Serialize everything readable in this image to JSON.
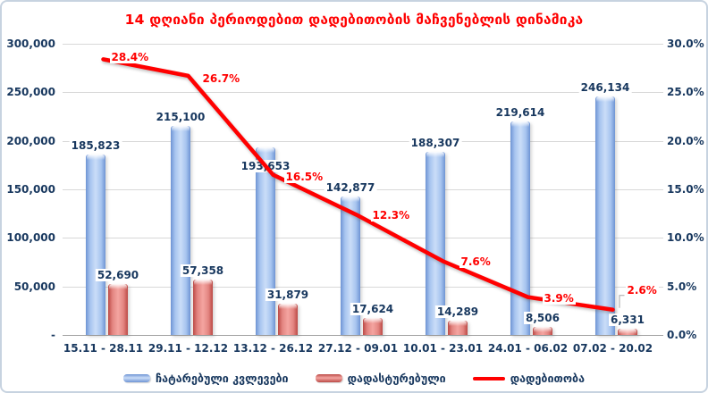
{
  "title": "14 დღიანი პერიოდებით დადებითობის მაჩვენებლის დინამიკა",
  "legend": {
    "items": [
      {
        "label": "ჩატარებული კვლევები",
        "swatch": "blue-bar"
      },
      {
        "label": "დადასტურებული",
        "swatch": "red-bar"
      },
      {
        "label": "დადებითობა",
        "swatch": "red-line"
      }
    ]
  },
  "colors": {
    "title": "#FF0000",
    "axis_text": "#17375E",
    "value_label_text": "#17375E",
    "percent_label_text": "#FF0000",
    "line": "#FF0000",
    "gridline": "#D8D8D8",
    "zero_line": "#A0A0A0",
    "chart_border": "#C7D3E0",
    "background": "#FFFFFF",
    "blue_bar_edge": "#6E94D4",
    "blue_bar_center": "#CADDF8",
    "red_bar_edge": "#BB4A46",
    "red_bar_center": "#F4A5A1"
  },
  "chart_data": {
    "type": "bar",
    "combo": "bar+line",
    "title": "14 დღიანი პერიოდებით დადებითობის მაჩვენებლის დინამიკა",
    "categories": [
      "15.11 - 28.11",
      "29.11 - 12.12",
      "13.12 - 26.12",
      "27.12 - 09.01",
      "10.01 - 23.01",
      "24.01 - 06.02",
      "07.02 - 20.02"
    ],
    "series": [
      {
        "name": "ჩატარებული კვლევები",
        "type": "bar",
        "axis": "left",
        "values": [
          185823,
          215100,
          193653,
          142877,
          188307,
          219614,
          246134
        ],
        "labels": [
          "185,823",
          "215,100",
          "193,653",
          "142,877",
          "188,307",
          "219,614",
          "246,134"
        ]
      },
      {
        "name": "დადასტურებული",
        "type": "bar",
        "axis": "left",
        "values": [
          52690,
          57358,
          31879,
          17624,
          14289,
          8506,
          6331
        ],
        "labels": [
          "52,690",
          "57,358",
          "31,879",
          "17,624",
          "14,289",
          "8,506",
          "6,331"
        ]
      },
      {
        "name": "დადებითობა",
        "type": "line",
        "axis": "right",
        "values": [
          28.4,
          26.7,
          16.5,
          12.3,
          7.6,
          3.9,
          2.6
        ],
        "labels": [
          "28.4%",
          "26.7%",
          "16.5%",
          "12.3%",
          "7.6%",
          "3.9%",
          "2.6%"
        ]
      }
    ],
    "left_axis": {
      "min": 0,
      "max": 300000,
      "tick_step": 50000,
      "tick_labels": [
        "300,000",
        "250,000",
        "200,000",
        "150,000",
        "100,000",
        "50,000",
        "-"
      ]
    },
    "right_axis": {
      "min": 0,
      "max": 30,
      "tick_step": 5,
      "tick_labels": [
        "30.0%",
        "25.0%",
        "20.0%",
        "15.0%",
        "10.0%",
        "5.0%",
        "0.0%"
      ]
    },
    "grid": true,
    "legend_position": "bottom",
    "label_layout": {
      "blue_label_dy": [
        -17,
        -17,
        14,
        -17,
        -17,
        -17,
        -17
      ],
      "red_label_dy": [
        -17,
        -17,
        -17,
        -17,
        -17,
        -17,
        -17
      ],
      "pct_dx": [
        7,
        14,
        12,
        14,
        18,
        16,
        14
      ],
      "pct_dy": [
        -2,
        3,
        2,
        0,
        1,
        1,
        -22
      ],
      "callout_last_point": true
    }
  }
}
